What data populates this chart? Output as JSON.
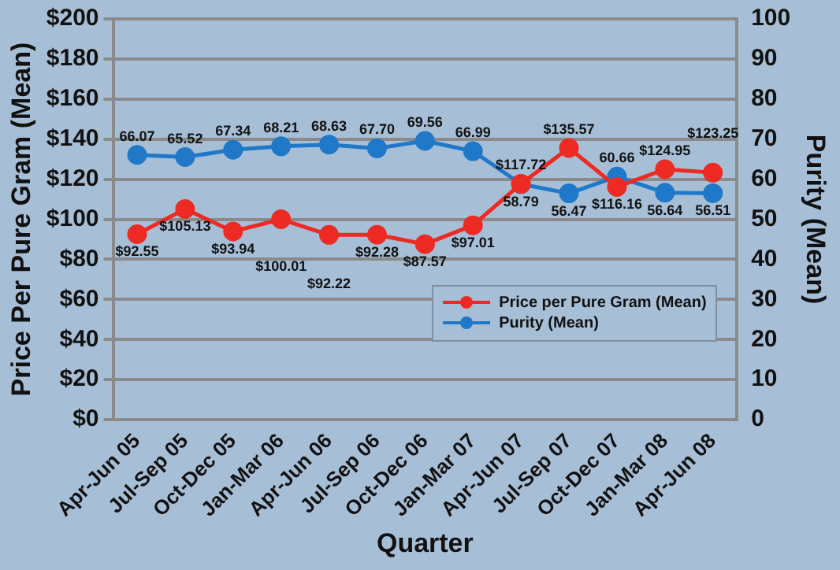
{
  "chart_data": {
    "type": "line",
    "xlabel": "Quarter",
    "ylabel": "Price Per Pure Gram (Mean)",
    "y2label": "Purity (Mean)",
    "categories": [
      "Apr-Jun 05",
      "Jul-Sep 05",
      "Oct-Dec 05",
      "Jan-Mar 06",
      "Apr-Jun 06",
      "Jul-Sep 06",
      "Oct-Dec 06",
      "Jan-Mar 07",
      "Apr-Jun 07",
      "Jul-Sep 07",
      "Oct-Dec 07",
      "Jan-Mar 08",
      "Apr-Jun 08"
    ],
    "series": [
      {
        "name": "Price per Pure Gram (Mean)",
        "color": "#ee2a24",
        "values": [
          92.55,
          105.13,
          93.94,
          100.01,
          92.22,
          92.28,
          87.57,
          97.01,
          117.72,
          135.57,
          116.16,
          124.95,
          123.25
        ],
        "value_labels": [
          "$92.55",
          "$105.13",
          "$93.94",
          "$100.01",
          "$92.22",
          "$92.28",
          "$87.57",
          "$97.01",
          "$117.72",
          "$135.57",
          "$116.16",
          "$124.95",
          "$123.25"
        ]
      },
      {
        "name": "Purity (Mean)",
        "color": "#1f78c8",
        "axis": "y2",
        "values": [
          66.07,
          65.52,
          67.34,
          68.21,
          68.63,
          67.7,
          69.56,
          66.99,
          58.79,
          56.47,
          60.66,
          56.64,
          56.51
        ],
        "value_labels": [
          "66.07",
          "65.52",
          "67.34",
          "68.21",
          "68.63",
          "67.70",
          "69.56",
          "66.99",
          "58.79",
          "56.47",
          "60.66",
          "56.64",
          "56.51"
        ]
      }
    ],
    "ylim": [
      0,
      200
    ],
    "yticks": [
      {
        "value": 0,
        "label": "$0"
      },
      {
        "value": 20,
        "label": "$20"
      },
      {
        "value": 40,
        "label": "$40"
      },
      {
        "value": 60,
        "label": "$60"
      },
      {
        "value": 80,
        "label": "$80"
      },
      {
        "value": 100,
        "label": "$100"
      },
      {
        "value": 120,
        "label": "$120"
      },
      {
        "value": 140,
        "label": "$140"
      },
      {
        "value": 160,
        "label": "$160"
      },
      {
        "value": 180,
        "label": "$180"
      },
      {
        "value": 200,
        "label": "$200"
      }
    ],
    "y2lim": [
      0,
      100
    ],
    "y2ticks": [
      0,
      10,
      20,
      30,
      40,
      50,
      60,
      70,
      80,
      90,
      100
    ],
    "grid": "y",
    "legend": "bottom right",
    "marker": "circle",
    "line_style": "solid"
  }
}
